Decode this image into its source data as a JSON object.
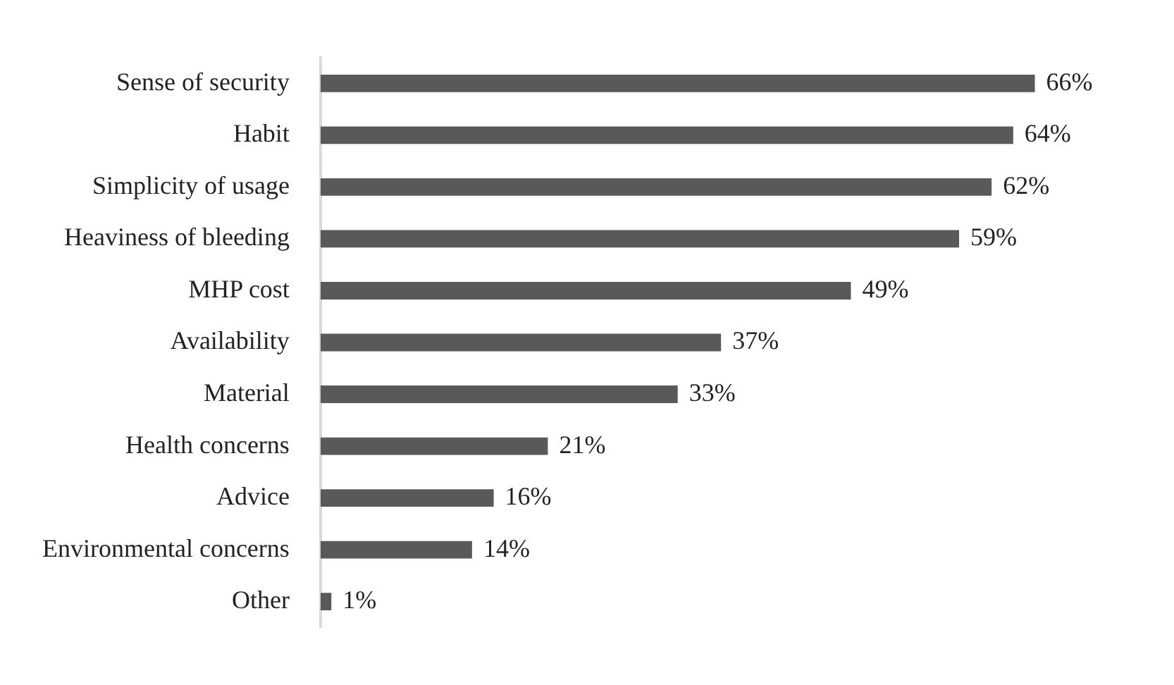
{
  "chart_data": {
    "type": "bar",
    "orientation": "horizontal",
    "categories": [
      "Sense of security",
      "Habit",
      "Simplicity of usage",
      "Heaviness of bleeding",
      "MHP cost",
      "Availability",
      "Material",
      "Health concerns",
      "Advice",
      "Environmental concerns",
      "Other"
    ],
    "values": [
      66,
      64,
      62,
      59,
      49,
      37,
      33,
      21,
      16,
      14,
      1
    ],
    "value_labels": [
      "66%",
      "64%",
      "62%",
      "59%",
      "49%",
      "37%",
      "33%",
      "21%",
      "16%",
      "14%",
      "1%"
    ],
    "color": "#595959",
    "grid": false,
    "legend": false
  }
}
